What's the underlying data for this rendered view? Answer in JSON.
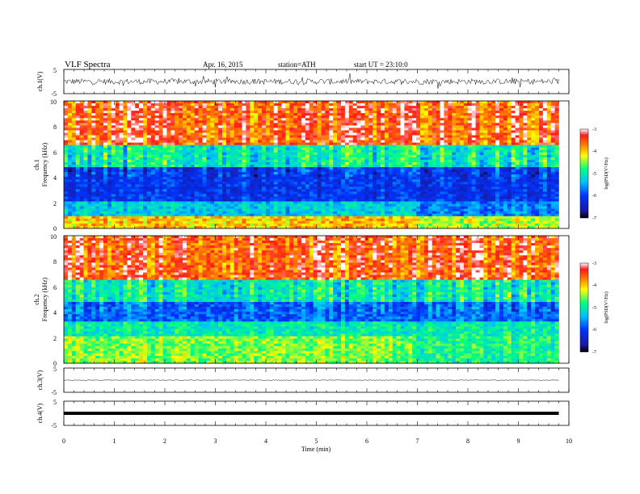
{
  "header": {
    "title": "VLF  Spectra",
    "date": "Apr. 16, 2015",
    "station": "station=ATH",
    "start": "start  UT  =    23:10:0"
  },
  "colors": {
    "waveform": "#000000",
    "colormap": [
      "#000000",
      "#1a1aa0",
      "#0033ff",
      "#00bfff",
      "#00ff80",
      "#ffff00",
      "#ff8000",
      "#ff1a1a",
      "#ffffff"
    ]
  },
  "chart_data": [
    {
      "type": "line",
      "panel": "ch1-waveform",
      "ylabel": "ch.1(V)",
      "yticks": [
        "5",
        "-5"
      ],
      "ylim": [
        -5,
        5
      ],
      "xlim": [
        0,
        10
      ],
      "mean": 0.0,
      "amplitude_typical": 1.2,
      "data_extent_min": 9.8
    },
    {
      "type": "heatmap",
      "panel": "ch1-spectrogram",
      "ylabel": "ch.1",
      "ylabel2": "Frequency  (kHz)",
      "yticks": [
        "0",
        "2",
        "4",
        "6",
        "8",
        "10"
      ],
      "ylim": [
        0,
        10
      ],
      "xlim": [
        0,
        10
      ],
      "data_extent_min": 9.8,
      "colorbar": {
        "label": "log(PSD(V²/Hz)",
        "ticks": [
          "-3",
          "-4",
          "-5",
          "-6",
          "-7"
        ],
        "range": [
          -7,
          -3
        ]
      },
      "bands_kHz": [
        {
          "from": 0.0,
          "to": 1.0,
          "logPSD": -4.0
        },
        {
          "from": 1.0,
          "to": 2.2,
          "logPSD": -5.3
        },
        {
          "from": 2.2,
          "to": 4.8,
          "logPSD": -6.1
        },
        {
          "from": 4.8,
          "to": 6.5,
          "logPSD": -5.0
        },
        {
          "from": 6.5,
          "to": 10.0,
          "logPSD": -3.5
        }
      ],
      "step_change_min": 6.9
    },
    {
      "type": "heatmap",
      "panel": "ch2-spectrogram",
      "ylabel": "ch.2",
      "ylabel2": "Frequency  (kHz)",
      "yticks": [
        "0",
        "2",
        "4",
        "6",
        "8",
        "10"
      ],
      "ylim": [
        0,
        10
      ],
      "xlim": [
        0,
        10
      ],
      "data_extent_min": 9.8,
      "colorbar": {
        "label": "log(PSD(V²/Hz)",
        "ticks": [
          "-3",
          "-4",
          "-5",
          "-6",
          "-7"
        ],
        "range": [
          -7,
          -3
        ]
      },
      "bands_kHz": [
        {
          "from": 0.0,
          "to": 2.2,
          "logPSD": -4.5
        },
        {
          "from": 2.2,
          "to": 3.3,
          "logPSD": -5.0
        },
        {
          "from": 3.3,
          "to": 4.8,
          "logPSD": -5.8
        },
        {
          "from": 4.8,
          "to": 6.5,
          "logPSD": -5.0
        },
        {
          "from": 6.5,
          "to": 10.0,
          "logPSD": -3.5
        }
      ],
      "step_change_min": 6.9
    },
    {
      "type": "line",
      "panel": "ch3-waveform",
      "ylabel": "ch.3(V)",
      "yticks": [
        "5",
        "-5"
      ],
      "ylim": [
        -5,
        5
      ],
      "xlim": [
        0,
        10
      ],
      "mean": 0.0,
      "amplitude_typical": 0.1,
      "data_extent_min": 9.8
    },
    {
      "type": "line",
      "panel": "ch4-waveform",
      "ylabel": "ch.4(V)",
      "yticks": [
        "5",
        "-5"
      ],
      "ylim": [
        -5,
        5
      ],
      "xlim": [
        0,
        10
      ],
      "mean": 0.0,
      "amplitude_typical": 0.0,
      "data_extent_min": 9.8
    }
  ],
  "xaxis": {
    "label": "Time  (min)",
    "ticks": [
      "0",
      "1",
      "2",
      "3",
      "4",
      "5",
      "6",
      "7",
      "8",
      "9",
      "10"
    ]
  }
}
